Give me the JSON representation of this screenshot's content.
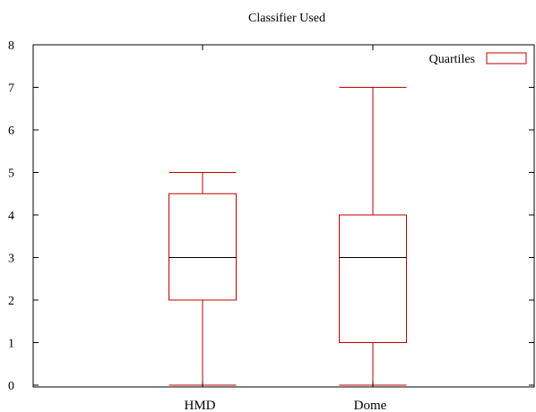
{
  "chart_data": {
    "type": "boxplot",
    "title": "Classifier Used",
    "xlabel": "",
    "ylabel": "",
    "ylim": [
      0,
      8
    ],
    "yticks": [
      0,
      1,
      2,
      3,
      4,
      5,
      6,
      7,
      8
    ],
    "categories": [
      "HMD",
      "Dome"
    ],
    "boxes": [
      {
        "category": "HMD",
        "min": 0,
        "q1": 2,
        "median": 3,
        "q3": 4.5,
        "max": 5
      },
      {
        "category": "Dome",
        "min": 0,
        "q1": 1,
        "median": 3,
        "q3": 4,
        "max": 7
      }
    ],
    "legend": {
      "label": "Quartiles",
      "position": "top-right"
    },
    "grid": false,
    "colors": {
      "box": "#c00000",
      "median": "#000000",
      "axis": "#000000"
    }
  }
}
